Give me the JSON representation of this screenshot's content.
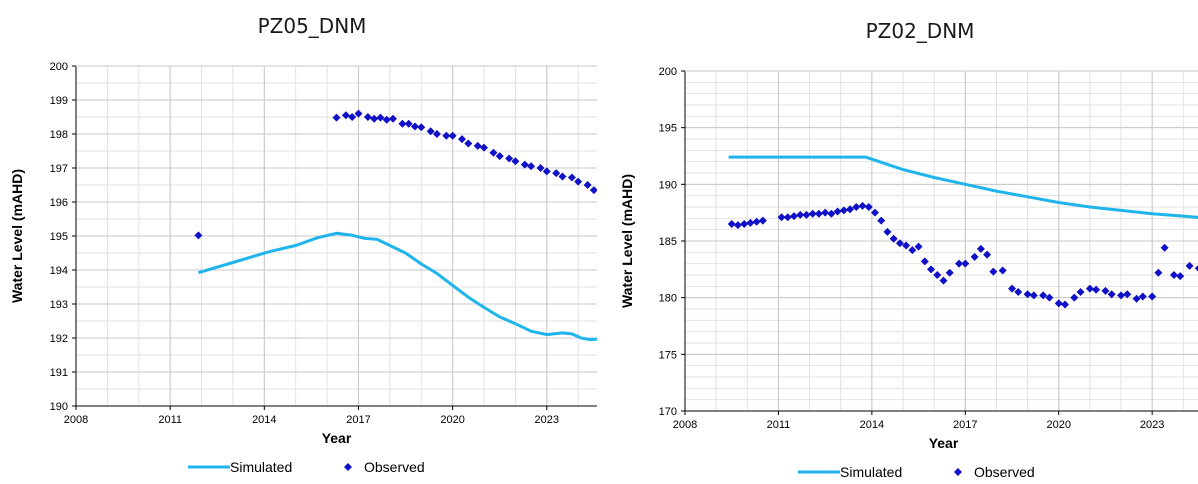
{
  "chart_data": [
    {
      "type": "line",
      "title": "PZ05_DNM",
      "xlabel": "Year",
      "ylabel": "Water Level (mAHD)",
      "xlim": [
        2008,
        2024.6
      ],
      "ylim": [
        190,
        200
      ],
      "x_ticks": [
        2008,
        2011,
        2014,
        2017,
        2020,
        2023
      ],
      "y_ticks": [
        190,
        191,
        192,
        193,
        194,
        195,
        196,
        197,
        198,
        199,
        200
      ],
      "grid": true,
      "legend": "bottom",
      "series": [
        {
          "name": "Simulated",
          "kind": "line",
          "color": "#1fb4ec",
          "points": [
            [
              2011.9,
              193.92
            ],
            [
              2013.0,
              194.22
            ],
            [
              2014.2,
              194.55
            ],
            [
              2015.0,
              194.72
            ],
            [
              2015.7,
              194.95
            ],
            [
              2016.3,
              195.08
            ],
            [
              2016.8,
              195.02
            ],
            [
              2017.2,
              194.93
            ],
            [
              2017.6,
              194.9
            ],
            [
              2018.0,
              194.72
            ],
            [
              2018.5,
              194.5
            ],
            [
              2019.0,
              194.18
            ],
            [
              2019.5,
              193.9
            ],
            [
              2020.0,
              193.55
            ],
            [
              2020.5,
              193.2
            ],
            [
              2021.0,
              192.9
            ],
            [
              2021.5,
              192.62
            ],
            [
              2022.0,
              192.42
            ],
            [
              2022.5,
              192.2
            ],
            [
              2023.0,
              192.1
            ],
            [
              2023.5,
              192.15
            ],
            [
              2023.8,
              192.12
            ],
            [
              2024.1,
              192.0
            ],
            [
              2024.4,
              191.95
            ],
            [
              2024.6,
              191.97
            ]
          ]
        },
        {
          "name": "Observed",
          "kind": "scatter",
          "color": "#1010c8",
          "points": [
            [
              2011.9,
              195.02
            ],
            [
              2016.3,
              198.48
            ],
            [
              2016.6,
              198.55
            ],
            [
              2016.8,
              198.5
            ],
            [
              2017.0,
              198.6
            ],
            [
              2017.3,
              198.5
            ],
            [
              2017.5,
              198.45
            ],
            [
              2017.7,
              198.48
            ],
            [
              2017.9,
              198.42
            ],
            [
              2018.1,
              198.45
            ],
            [
              2018.4,
              198.3
            ],
            [
              2018.6,
              198.3
            ],
            [
              2018.8,
              198.22
            ],
            [
              2019.0,
              198.2
            ],
            [
              2019.3,
              198.08
            ],
            [
              2019.5,
              198.0
            ],
            [
              2019.8,
              197.95
            ],
            [
              2020.0,
              197.95
            ],
            [
              2020.3,
              197.85
            ],
            [
              2020.5,
              197.72
            ],
            [
              2020.8,
              197.65
            ],
            [
              2021.0,
              197.6
            ],
            [
              2021.3,
              197.45
            ],
            [
              2021.5,
              197.35
            ],
            [
              2021.8,
              197.28
            ],
            [
              2022.0,
              197.2
            ],
            [
              2022.3,
              197.1
            ],
            [
              2022.5,
              197.05
            ],
            [
              2022.8,
              197.0
            ],
            [
              2023.0,
              196.9
            ],
            [
              2023.3,
              196.85
            ],
            [
              2023.5,
              196.75
            ],
            [
              2023.8,
              196.72
            ],
            [
              2024.0,
              196.6
            ],
            [
              2024.3,
              196.5
            ],
            [
              2024.5,
              196.35
            ]
          ]
        }
      ]
    },
    {
      "type": "line",
      "title": "PZ02_DNM",
      "xlabel": "Year",
      "ylabel": "Water Level (mAHD)",
      "xlim": [
        2008,
        2024.6
      ],
      "ylim": [
        170,
        200
      ],
      "x_ticks": [
        2008,
        2011,
        2014,
        2017,
        2020,
        2023
      ],
      "y_ticks": [
        170,
        175,
        180,
        185,
        190,
        195,
        200
      ],
      "grid": true,
      "legend": "bottom",
      "series": [
        {
          "name": "Simulated",
          "kind": "line",
          "color": "#1fb4ec",
          "points": [
            [
              2009.4,
              192.4
            ],
            [
              2013.8,
              192.4
            ],
            [
              2015.0,
              191.3
            ],
            [
              2016.0,
              190.6
            ],
            [
              2017.0,
              190.0
            ],
            [
              2018.0,
              189.4
            ],
            [
              2019.0,
              188.9
            ],
            [
              2020.0,
              188.4
            ],
            [
              2021.0,
              188.0
            ],
            [
              2022.0,
              187.7
            ],
            [
              2023.0,
              187.4
            ],
            [
              2024.0,
              187.2
            ],
            [
              2024.6,
              187.05
            ]
          ]
        },
        {
          "name": "Observed",
          "kind": "scatter",
          "color": "#1010c8",
          "points": [
            [
              2009.5,
              186.5
            ],
            [
              2009.7,
              186.4
            ],
            [
              2009.9,
              186.5
            ],
            [
              2010.1,
              186.6
            ],
            [
              2010.3,
              186.7
            ],
            [
              2010.5,
              186.8
            ],
            [
              2011.1,
              187.1
            ],
            [
              2011.3,
              187.1
            ],
            [
              2011.5,
              187.2
            ],
            [
              2011.7,
              187.3
            ],
            [
              2011.9,
              187.3
            ],
            [
              2012.1,
              187.4
            ],
            [
              2012.3,
              187.4
            ],
            [
              2012.5,
              187.5
            ],
            [
              2012.7,
              187.4
            ],
            [
              2012.9,
              187.6
            ],
            [
              2013.1,
              187.7
            ],
            [
              2013.3,
              187.8
            ],
            [
              2013.5,
              188.0
            ],
            [
              2013.7,
              188.1
            ],
            [
              2013.9,
              188.0
            ],
            [
              2014.1,
              187.5
            ],
            [
              2014.3,
              186.8
            ],
            [
              2014.5,
              185.8
            ],
            [
              2014.7,
              185.2
            ],
            [
              2014.9,
              184.8
            ],
            [
              2015.1,
              184.6
            ],
            [
              2015.3,
              184.2
            ],
            [
              2015.5,
              184.5
            ],
            [
              2015.7,
              183.2
            ],
            [
              2015.9,
              182.5
            ],
            [
              2016.1,
              182.0
            ],
            [
              2016.3,
              181.5
            ],
            [
              2016.5,
              182.2
            ],
            [
              2016.8,
              183.0
            ],
            [
              2017.0,
              183.0
            ],
            [
              2017.3,
              183.6
            ],
            [
              2017.5,
              184.3
            ],
            [
              2017.7,
              183.8
            ],
            [
              2017.9,
              182.3
            ],
            [
              2018.2,
              182.4
            ],
            [
              2018.5,
              180.8
            ],
            [
              2018.7,
              180.5
            ],
            [
              2019.0,
              180.3
            ],
            [
              2019.2,
              180.2
            ],
            [
              2019.5,
              180.2
            ],
            [
              2019.7,
              180.0
            ],
            [
              2020.0,
              179.5
            ],
            [
              2020.2,
              179.4
            ],
            [
              2020.5,
              180.0
            ],
            [
              2020.7,
              180.5
            ],
            [
              2021.0,
              180.8
            ],
            [
              2021.2,
              180.7
            ],
            [
              2021.5,
              180.6
            ],
            [
              2021.7,
              180.3
            ],
            [
              2022.0,
              180.2
            ],
            [
              2022.2,
              180.3
            ],
            [
              2022.5,
              179.9
            ],
            [
              2022.7,
              180.1
            ],
            [
              2023.0,
              180.1
            ],
            [
              2023.2,
              182.2
            ],
            [
              2023.4,
              184.4
            ],
            [
              2023.7,
              182.0
            ],
            [
              2023.9,
              181.9
            ],
            [
              2024.2,
              182.8
            ],
            [
              2024.5,
              182.6
            ]
          ]
        }
      ]
    }
  ]
}
